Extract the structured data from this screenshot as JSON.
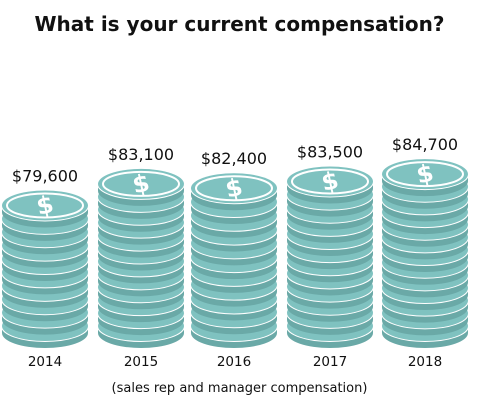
{
  "chart_data": {
    "type": "bar",
    "title": "What is your current compensation?",
    "note": "(sales rep and manager compensation)",
    "categories": [
      "2014",
      "2015",
      "2016",
      "2017",
      "2018"
    ],
    "values": [
      79600,
      83100,
      82400,
      83500,
      84700
    ],
    "value_labels": [
      "$79,600",
      "$83,100",
      "$82,400",
      "$83,500",
      "$84,700"
    ],
    "xlabel": "",
    "ylabel": "",
    "grid": false,
    "legend": "none",
    "mark_style": "coin-stack"
  },
  "colors": {
    "coin_face": "#7fc2c0",
    "coin_edge": "#6aa9a7",
    "coin_gap": "#ffffff",
    "symbol": "#ffffff",
    "text": "#111111",
    "background": "#ffffff"
  },
  "icons": {
    "coin_symbol": "dollar-sign-icon"
  }
}
